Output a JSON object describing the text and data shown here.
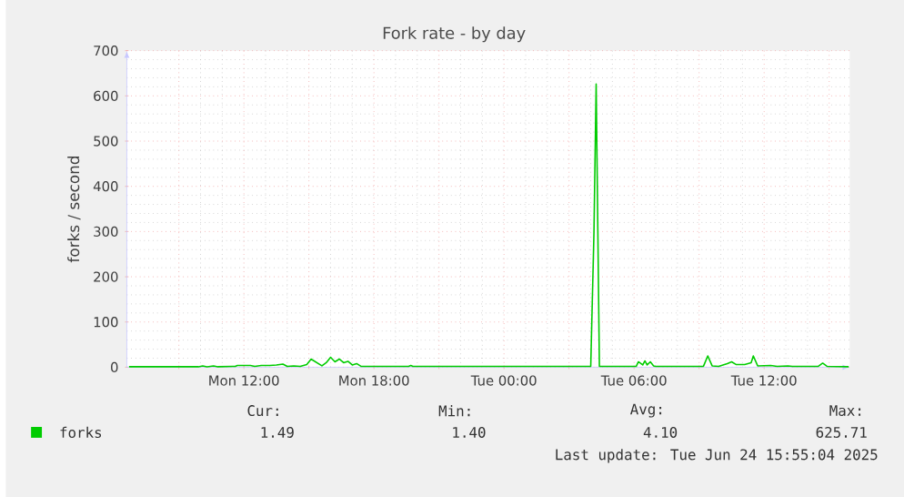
{
  "chart_data": {
    "type": "line",
    "title": "Fork rate - by day",
    "ylabel": "forks / second",
    "x": [
      "2025-06-23T06:42",
      "2025-06-23T09:54",
      "2025-06-23T10:06",
      "2025-06-23T10:18",
      "2025-06-23T10:36",
      "2025-06-23T10:48",
      "2025-06-23T11:36",
      "2025-06-23T11:42",
      "2025-06-23T12:18",
      "2025-06-23T12:30",
      "2025-06-23T12:48",
      "2025-06-23T13:12",
      "2025-06-23T13:30",
      "2025-06-23T13:48",
      "2025-06-23T14:00",
      "2025-06-23T14:18",
      "2025-06-23T14:36",
      "2025-06-23T14:54",
      "2025-06-23T15:06",
      "2025-06-23T15:18",
      "2025-06-23T15:36",
      "2025-06-23T15:48",
      "2025-06-23T16:00",
      "2025-06-23T16:12",
      "2025-06-23T16:24",
      "2025-06-23T16:36",
      "2025-06-23T16:48",
      "2025-06-23T17:00",
      "2025-06-23T17:12",
      "2025-06-23T17:24",
      "2025-06-23T17:36",
      "2025-06-23T19:36",
      "2025-06-23T19:42",
      "2025-06-23T19:48",
      "2025-06-24T04:00",
      "2025-06-24T04:09",
      "2025-06-24T04:15",
      "2025-06-24T04:24",
      "2025-06-24T06:06",
      "2025-06-24T06:12",
      "2025-06-24T06:24",
      "2025-06-24T06:30",
      "2025-06-24T06:36",
      "2025-06-24T06:45",
      "2025-06-24T06:54",
      "2025-06-24T07:00",
      "2025-06-24T09:12",
      "2025-06-24T09:24",
      "2025-06-24T09:36",
      "2025-06-24T09:54",
      "2025-06-24T10:18",
      "2025-06-24T10:30",
      "2025-06-24T10:42",
      "2025-06-24T11:06",
      "2025-06-24T11:24",
      "2025-06-24T11:30",
      "2025-06-24T11:42",
      "2025-06-24T12:18",
      "2025-06-24T12:36",
      "2025-06-24T13:06",
      "2025-06-24T13:18",
      "2025-06-24T14:30",
      "2025-06-24T14:42",
      "2025-06-24T14:54",
      "2025-06-24T15:54"
    ],
    "series": [
      {
        "name": "forks",
        "color": "#00cc00",
        "values": [
          1,
          1,
          3,
          1,
          3,
          1,
          2,
          4,
          4,
          2,
          4,
          4,
          5,
          7,
          2,
          3,
          2,
          6,
          18,
          12,
          3,
          10,
          22,
          12,
          18,
          10,
          13,
          5,
          8,
          2,
          2,
          2,
          4,
          2,
          2,
          300,
          626,
          2,
          2,
          12,
          5,
          14,
          5,
          12,
          3,
          2,
          2,
          25,
          3,
          2,
          8,
          12,
          6,
          6,
          10,
          25,
          3,
          4,
          2,
          3,
          2,
          2,
          9,
          2,
          1
        ]
      }
    ],
    "xlim": [
      "2025-06-23T06:36",
      "2025-06-24T15:57"
    ],
    "xticks": [
      {
        "value": "2025-06-23T09:00",
        "label": null
      },
      {
        "value": "2025-06-23T12:00",
        "label": "Mon 12:00"
      },
      {
        "value": "2025-06-23T15:00",
        "label": null
      },
      {
        "value": "2025-06-23T18:00",
        "label": "Mon 18:00"
      },
      {
        "value": "2025-06-23T21:00",
        "label": null
      },
      {
        "value": "2025-06-24T00:00",
        "label": "Tue 00:00"
      },
      {
        "value": "2025-06-24T03:00",
        "label": null
      },
      {
        "value": "2025-06-24T06:00",
        "label": "Tue 06:00"
      },
      {
        "value": "2025-06-24T09:00",
        "label": null
      },
      {
        "value": "2025-06-24T12:00",
        "label": "Tue 12:00"
      },
      {
        "value": "2025-06-24T15:00",
        "label": null
      }
    ],
    "ylim": [
      0,
      700
    ],
    "yticks": [
      0,
      100,
      200,
      300,
      400,
      500,
      600,
      700
    ],
    "grid": true,
    "legend": "bottom left",
    "annotations": [
      "Cur:",
      "Min:",
      "Avg:",
      "Max:",
      "1.49",
      "1.40",
      "4.10",
      "625.71",
      "Last update: Tue Jun 24 15:55:04 2025"
    ]
  }
}
